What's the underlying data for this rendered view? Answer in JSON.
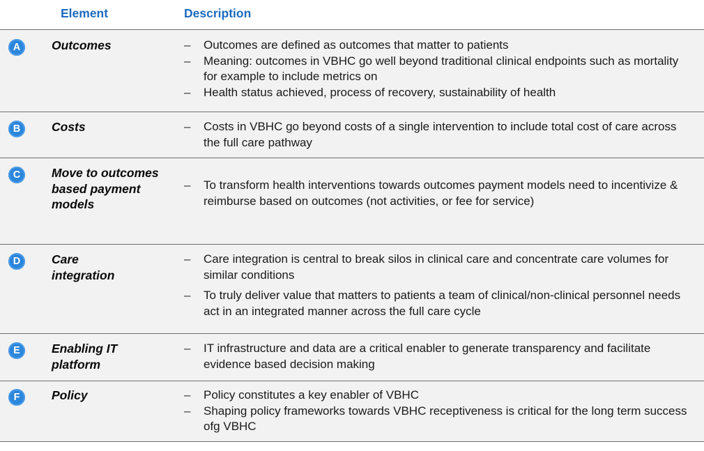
{
  "header": {
    "element_label": "Element",
    "description_label": "Description"
  },
  "rows": [
    {
      "badge": "A",
      "element": "Outcomes",
      "bullets": [
        "Outcomes are defined as outcomes that matter to patients",
        "Meaning: outcomes in VBHC go well beyond traditional clinical endpoints such as mortality for example to include metrics on",
        "Health status achieved, process of recovery, sustainability of health"
      ]
    },
    {
      "badge": "B",
      "element": "Costs",
      "bullets": [
        "Costs in VBHC go beyond costs of a single intervention to include total cost of care across the full care pathway"
      ]
    },
    {
      "badge": "C",
      "element": "Move to outcomes based payment models",
      "bullets": [
        "To transform health interventions towards outcomes payment models need to incentivize & reimburse based on outcomes (not activities, or fee for service)"
      ]
    },
    {
      "badge": "D",
      "element": "Care integration",
      "bullets": [
        "Care integration is central to break silos in clinical care and concentrate care volumes for similar conditions",
        "To truly deliver value that matters to patients a team of clinical/non-clinical personnel needs act in an integrated manner across the full care cycle"
      ]
    },
    {
      "badge": "E",
      "element": "Enabling IT platform",
      "bullets": [
        "IT infrastructure and data are a critical enabler to generate transparency and facilitate evidence based decision making"
      ]
    },
    {
      "badge": "F",
      "element": "Policy",
      "bullets": [
        "Policy constitutes a key enabler of VBHC",
        "Shaping policy frameworks towards VBHC receptiveness is critical for the long term success ofg VBHC"
      ]
    }
  ]
}
